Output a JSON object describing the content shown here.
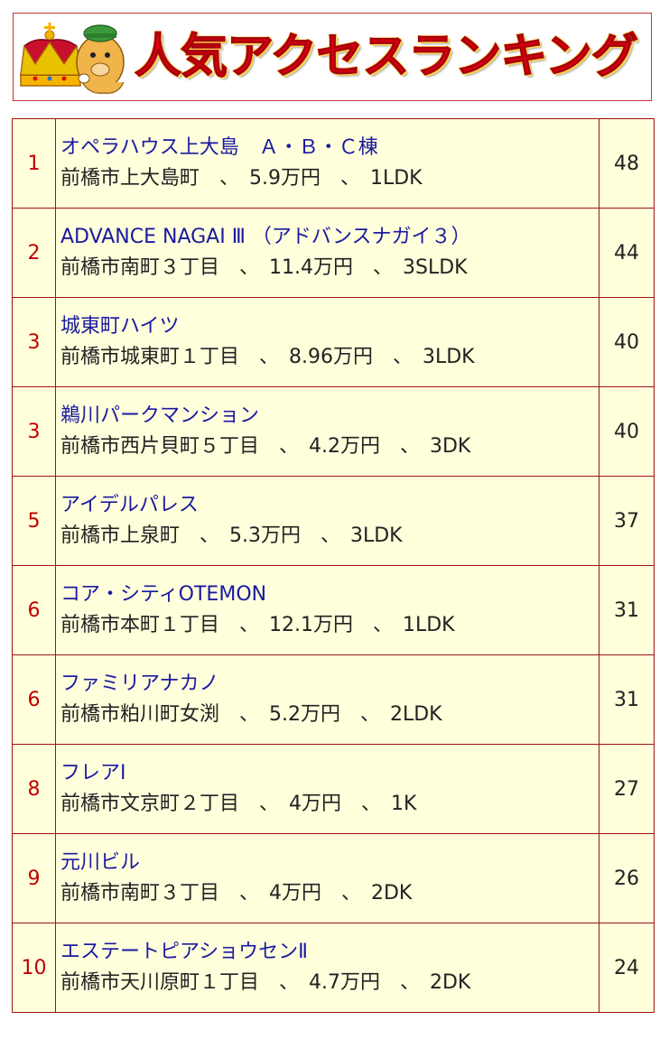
{
  "header": {
    "title": "人気アクセスランキング",
    "title_color": "#e60012",
    "outline_color": "#ffd84a",
    "icon": "crown-mascot-icon"
  },
  "colors": {
    "row_background": "#ffffdc",
    "border": "#a01313",
    "rank_text": "#c00000",
    "link_text": "#1a1aa0"
  },
  "rankings": [
    {
      "rank": "1",
      "name": "オペラハウス上大島　Ａ・Ｂ・Ｃ棟",
      "detail": "前橋市上大島町　、　5.9万円　、　1LDK",
      "count": "48"
    },
    {
      "rank": "2",
      "name": "ADVANCE NAGAI Ⅲ （アドバンスナガイ３）",
      "detail": "前橋市南町３丁目　、　11.4万円　、　3SLDK",
      "count": "44"
    },
    {
      "rank": "3",
      "name": "城東町ハイツ",
      "detail": "前橋市城東町１丁目　、　8.96万円　、　3LDK",
      "count": "40"
    },
    {
      "rank": "3",
      "name": "鵜川パークマンション",
      "detail": "前橋市西片貝町５丁目　、　4.2万円　、　3DK",
      "count": "40"
    },
    {
      "rank": "5",
      "name": "アイデルパレス",
      "detail": "前橋市上泉町　、　5.3万円　、　3LDK",
      "count": "37"
    },
    {
      "rank": "6",
      "name": "コア・シティOTEMON",
      "detail": "前橋市本町１丁目　、　12.1万円　、　1LDK",
      "count": "31"
    },
    {
      "rank": "6",
      "name": "ファミリアナカノ",
      "detail": "前橋市粕川町女渕　、　5.2万円　、　2LDK",
      "count": "31"
    },
    {
      "rank": "8",
      "name": "フレアⅠ",
      "detail": "前橋市文京町２丁目　、　4万円　、　1K",
      "count": "27"
    },
    {
      "rank": "9",
      "name": "元川ビル",
      "detail": "前橋市南町３丁目　、　4万円　、　2DK",
      "count": "26"
    },
    {
      "rank": "10",
      "name": "エステートピアショウセンⅡ",
      "detail": "前橋市天川原町１丁目　、　4.7万円　、　2DK",
      "count": "24"
    }
  ]
}
